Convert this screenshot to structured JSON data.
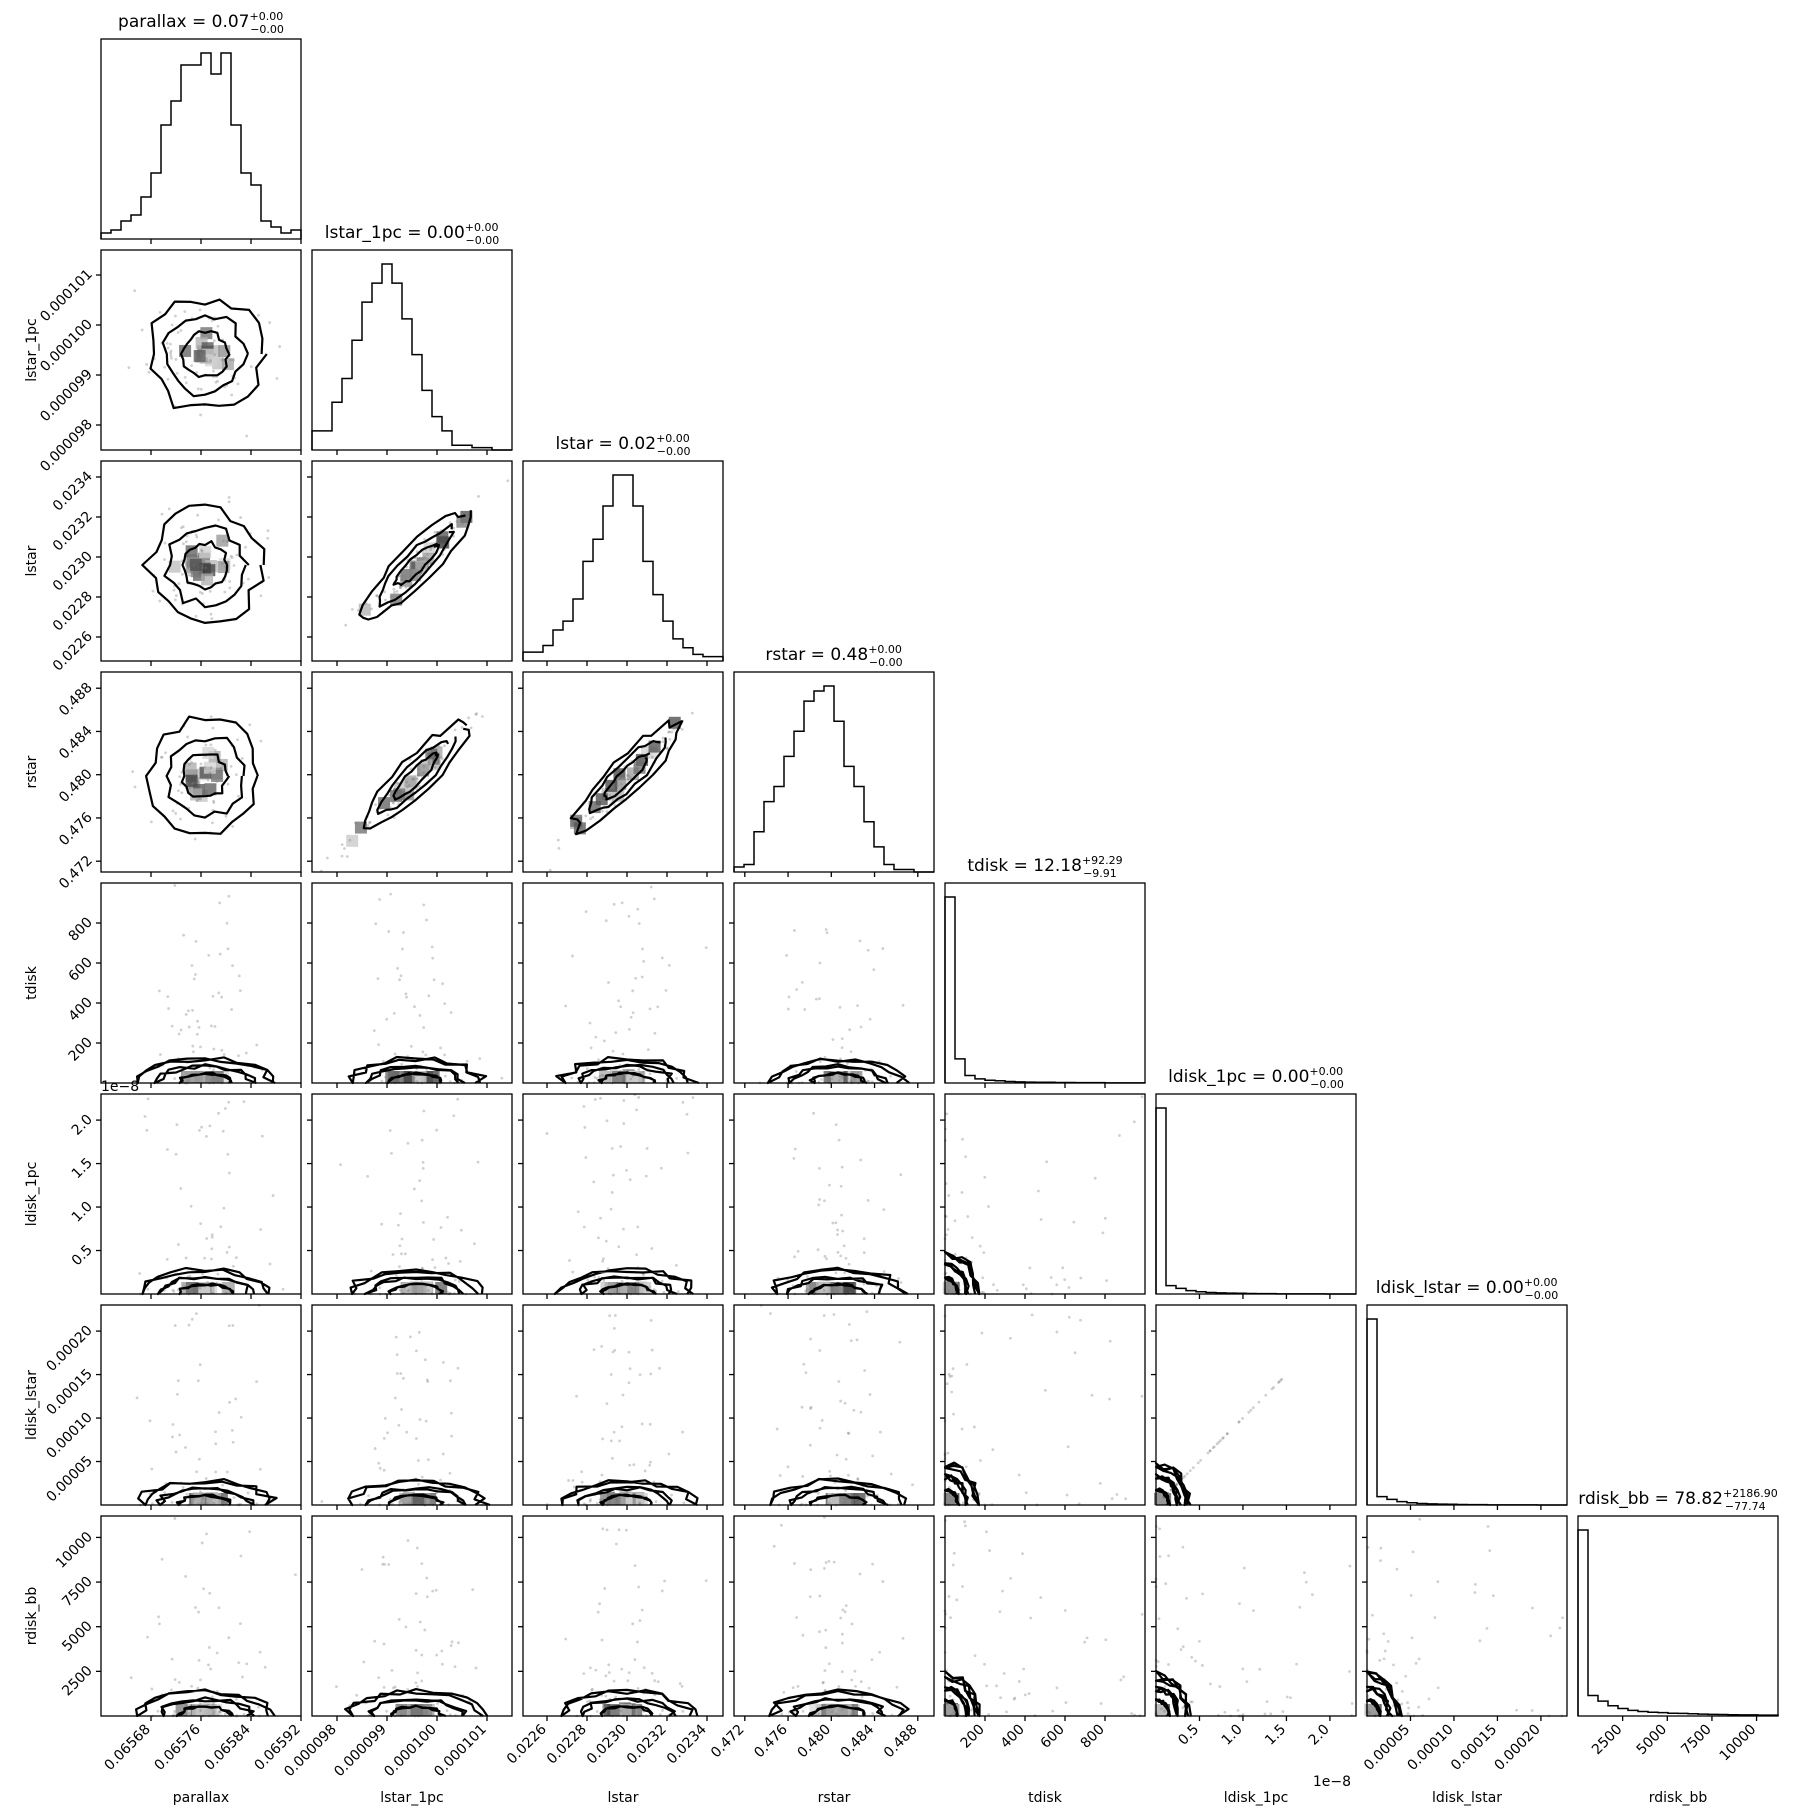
{
  "chart_data": {
    "type": "corner",
    "parameters": [
      {
        "key": "parallax",
        "label": "parallax",
        "title_main": "parallax = 0.07",
        "title_sup": "+0.00",
        "title_sub": "−0.00",
        "range": [
          0.0656,
          0.06592
        ],
        "ticks": [
          0.06568,
          0.06576,
          0.06584,
          0.06592
        ],
        "tick_labels": [
          "0.06568",
          "0.06576",
          "0.06584",
          "0.06592"
        ],
        "hist_counts": [
          2,
          3,
          6,
          8,
          14,
          22,
          38,
          46,
          58,
          58,
          62,
          55,
          62,
          38,
          22,
          18,
          6,
          4,
          2,
          3
        ]
      },
      {
        "key": "lstar_1pc",
        "label": "lstar_1pc",
        "title_main": "lstar_1pc = 0.00",
        "title_sup": "+0.00",
        "title_sub": "−0.00",
        "range": [
          9.75e-05,
          0.0001015
        ],
        "ticks": [
          9.8e-05,
          9.9e-05,
          0.0001,
          0.000101
        ],
        "tick_labels": [
          "0.000098",
          "0.000099",
          "0.000100",
          "0.000101"
        ],
        "hist_counts": [
          8,
          8,
          20,
          30,
          46,
          62,
          70,
          78,
          70,
          55,
          40,
          25,
          14,
          8,
          2,
          2,
          1,
          1,
          0,
          0
        ]
      },
      {
        "key": "lstar",
        "label": "lstar",
        "title_main": "lstar = 0.02",
        "title_sup": "+0.00",
        "title_sub": "−0.00",
        "range": [
          0.02248,
          0.02348
        ],
        "ticks": [
          0.0226,
          0.0228,
          0.023,
          0.0232,
          0.0234
        ],
        "tick_labels": [
          "0.0226",
          "0.0228",
          "0.0230",
          "0.0232",
          "0.0234"
        ],
        "hist_counts": [
          4,
          4,
          7,
          14,
          18,
          28,
          45,
          55,
          70,
          84,
          84,
          70,
          45,
          30,
          18,
          10,
          6,
          3,
          2,
          2
        ]
      },
      {
        "key": "rstar",
        "label": "rstar",
        "title_main": "rstar = 0.48",
        "title_sup": "+0.00",
        "title_sub": "−0.00",
        "range": [
          0.471,
          0.4895
        ],
        "ticks": [
          0.472,
          0.476,
          0.48,
          0.484,
          0.488
        ],
        "tick_labels": [
          "0.472",
          "0.476",
          "0.480",
          "0.484",
          "0.488"
        ],
        "hist_counts": [
          2,
          3,
          16,
          28,
          34,
          46,
          56,
          68,
          72,
          74,
          60,
          42,
          34,
          20,
          10,
          3,
          1,
          1,
          0,
          0
        ]
      },
      {
        "key": "tdisk",
        "label": "tdisk",
        "title_main": "tdisk = 12.18",
        "title_sup": "+92.29",
        "title_sub": "−9.91",
        "range": [
          0,
          1000
        ],
        "ticks": [
          200,
          400,
          600,
          800
        ],
        "tick_labels": [
          "200",
          "400",
          "600",
          "800"
        ],
        "hist_counts": [
          1000,
          130,
          40,
          22,
          15,
          12,
          8,
          6,
          5,
          4,
          4,
          3,
          3,
          2,
          2,
          2,
          1,
          1,
          1,
          1
        ]
      },
      {
        "key": "ldisk_1pc",
        "label": "ldisk_1pc",
        "title_main": "ldisk_1pc = 0.00",
        "title_sup": "+0.00",
        "title_sub": "−0.00",
        "range": [
          0,
          2.3e-08
        ],
        "ticks": [
          5e-09,
          1e-08,
          1.5e-08,
          2e-08
        ],
        "tick_labels": [
          "0.5",
          "1.0",
          "1.5",
          "2.0"
        ],
        "offset_label": "1e−8",
        "hist_counts": [
          1000,
          45,
          30,
          18,
          12,
          8,
          6,
          5,
          4,
          3,
          2,
          2,
          1,
          1,
          1,
          1,
          1,
          0,
          0,
          0
        ]
      },
      {
        "key": "ldisk_lstar",
        "label": "ldisk_lstar",
        "title_main": "ldisk_lstar = 0.00",
        "title_sup": "+0.00",
        "title_sub": "−0.00",
        "range": [
          0,
          0.00023
        ],
        "ticks": [
          5e-05,
          0.0001,
          0.00015,
          0.0002
        ],
        "tick_labels": [
          "0.00005",
          "0.00010",
          "0.00015",
          "0.00020"
        ],
        "hist_counts": [
          1000,
          45,
          30,
          18,
          12,
          8,
          6,
          5,
          4,
          3,
          2,
          2,
          1,
          1,
          1,
          1,
          1,
          0,
          0,
          0
        ]
      },
      {
        "key": "rdisk_bb",
        "label": "rdisk_bb",
        "title_main": "rdisk_bb = 78.82",
        "title_sup": "+2186.90",
        "title_sub": "−77.74",
        "range": [
          0,
          11200
        ],
        "ticks": [
          2500,
          5000,
          7500,
          10000
        ],
        "tick_labels": [
          "2500",
          "5000",
          "7500",
          "10000"
        ],
        "hist_counts": [
          1000,
          110,
          80,
          55,
          40,
          30,
          24,
          20,
          18,
          15,
          14,
          12,
          10,
          9,
          8,
          7,
          6,
          6,
          5,
          5
        ]
      }
    ]
  }
}
